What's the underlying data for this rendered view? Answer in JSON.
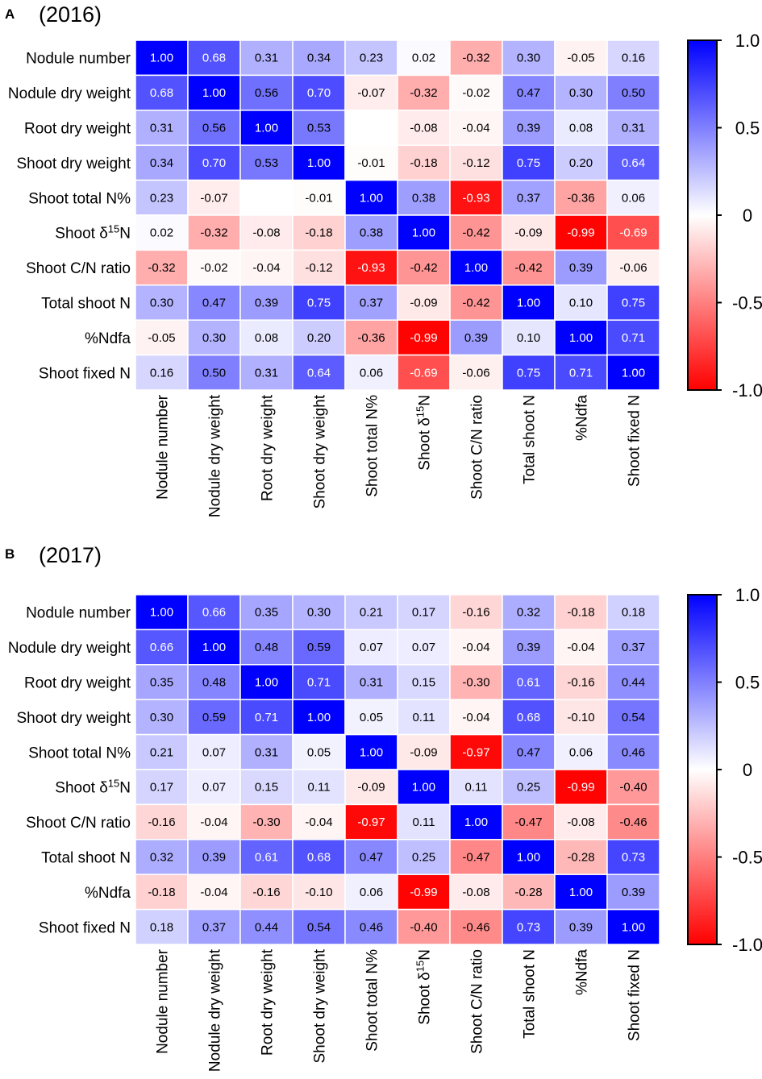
{
  "chart_data": [
    {
      "type": "heatmap",
      "panel": "A",
      "title": "(2016)",
      "labels": [
        "Nodule number",
        "Nodule dry weight",
        "Root dry weight",
        "Shoot dry weight",
        "Shoot total N%",
        "Shoot δ15N",
        "Shoot C/N ratio",
        "Total shoot N",
        "%Ndfa",
        "Shoot fixed N"
      ],
      "matrix": [
        [
          1.0,
          0.68,
          0.31,
          0.34,
          0.23,
          0.02,
          -0.32,
          0.3,
          -0.05,
          0.16
        ],
        [
          0.68,
          1.0,
          0.56,
          0.7,
          -0.07,
          -0.32,
          -0.02,
          0.47,
          0.3,
          0.5
        ],
        [
          0.31,
          0.56,
          1.0,
          0.53,
          null,
          -0.08,
          -0.04,
          0.39,
          0.08,
          0.31
        ],
        [
          0.34,
          0.7,
          0.53,
          1.0,
          -0.01,
          -0.18,
          -0.12,
          0.75,
          0.2,
          0.64
        ],
        [
          0.23,
          -0.07,
          null,
          -0.01,
          1.0,
          0.38,
          -0.93,
          0.37,
          -0.36,
          0.06
        ],
        [
          0.02,
          -0.32,
          -0.08,
          -0.18,
          0.38,
          1.0,
          -0.42,
          -0.09,
          -0.99,
          -0.69
        ],
        [
          -0.32,
          -0.02,
          -0.04,
          -0.12,
          -0.93,
          -0.42,
          1.0,
          -0.42,
          0.39,
          -0.06
        ],
        [
          0.3,
          0.47,
          0.39,
          0.75,
          0.37,
          -0.09,
          -0.42,
          1.0,
          0.1,
          0.75
        ],
        [
          -0.05,
          0.3,
          0.08,
          0.2,
          -0.36,
          -0.99,
          0.39,
          0.1,
          1.0,
          0.71
        ],
        [
          0.16,
          0.5,
          0.31,
          0.64,
          0.06,
          -0.69,
          -0.06,
          0.75,
          0.71,
          1.0
        ]
      ],
      "colorbar": {
        "min": -1.0,
        "max": 1.0,
        "ticks": [
          "1.0",
          "0.5",
          "0",
          "-0.5",
          "-1.0"
        ],
        "low_color": "#ff0000",
        "mid_color": "#ffffff",
        "high_color": "#0000ff"
      }
    },
    {
      "type": "heatmap",
      "panel": "B",
      "title": "(2017)",
      "labels": [
        "Nodule number",
        "Nodule dry weight",
        "Root dry weight",
        "Shoot dry weight",
        "Shoot total N%",
        "Shoot δ15N",
        "Shoot C/N ratio",
        "Total shoot N",
        "%Ndfa",
        "Shoot fixed N"
      ],
      "matrix": [
        [
          1.0,
          0.66,
          0.35,
          0.3,
          0.21,
          0.17,
          -0.16,
          0.32,
          -0.18,
          0.18
        ],
        [
          0.66,
          1.0,
          0.48,
          0.59,
          0.07,
          0.07,
          -0.04,
          0.39,
          -0.04,
          0.37
        ],
        [
          0.35,
          0.48,
          1.0,
          0.71,
          0.31,
          0.15,
          -0.3,
          0.61,
          -0.16,
          0.44
        ],
        [
          0.3,
          0.59,
          0.71,
          1.0,
          0.05,
          0.11,
          -0.04,
          0.68,
          -0.1,
          0.54
        ],
        [
          0.21,
          0.07,
          0.31,
          0.05,
          1.0,
          -0.09,
          -0.97,
          0.47,
          0.06,
          0.46
        ],
        [
          0.17,
          0.07,
          0.15,
          0.11,
          -0.09,
          1.0,
          0.11,
          0.25,
          -0.99,
          -0.4
        ],
        [
          -0.16,
          -0.04,
          -0.3,
          -0.04,
          -0.97,
          0.11,
          1.0,
          -0.47,
          -0.08,
          -0.46
        ],
        [
          0.32,
          0.39,
          0.61,
          0.68,
          0.47,
          0.25,
          -0.47,
          1.0,
          -0.28,
          0.73
        ],
        [
          -0.18,
          -0.04,
          -0.16,
          -0.1,
          0.06,
          -0.99,
          -0.08,
          -0.28,
          1.0,
          0.39
        ],
        [
          0.18,
          0.37,
          0.44,
          0.54,
          0.46,
          -0.4,
          -0.46,
          0.73,
          0.39,
          1.0
        ]
      ],
      "colorbar": {
        "min": -1.0,
        "max": 1.0,
        "ticks": [
          "1.0",
          "0.5",
          "0",
          "-0.5",
          "-1.0"
        ],
        "low_color": "#ff0000",
        "mid_color": "#ffffff",
        "high_color": "#0000ff"
      }
    }
  ]
}
